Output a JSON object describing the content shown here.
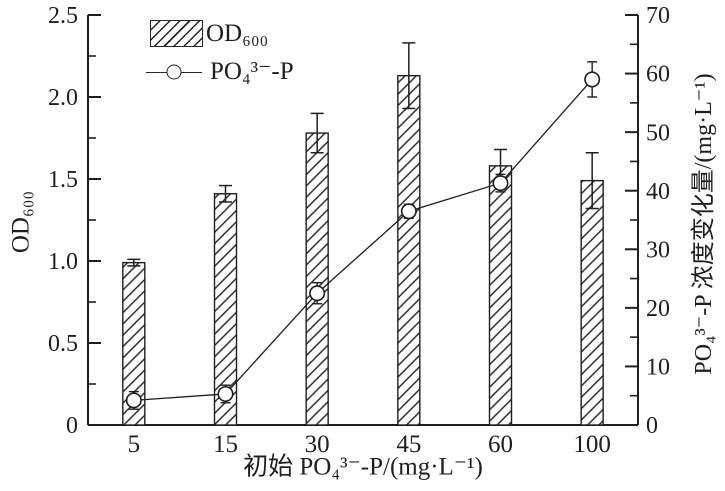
{
  "chart_data": {
    "type": "bar",
    "subtype": "dual-axis bar + line with error bars",
    "categories": [
      "5",
      "15",
      "30",
      "45",
      "60",
      "100"
    ],
    "series": [
      {
        "name": "OD₆₀₀",
        "kind": "bar",
        "axis": "left",
        "style": "diagonal-hatch",
        "values": [
          0.99,
          1.41,
          1.78,
          2.13,
          1.58,
          1.49
        ],
        "errors": [
          0.02,
          0.05,
          0.12,
          0.2,
          0.1,
          0.17
        ]
      },
      {
        "name": "PO₄³⁻-P",
        "kind": "line",
        "axis": "right",
        "marker": "open-circle",
        "values": [
          4.2,
          5.3,
          22.5,
          36.5,
          41.3,
          59.0
        ],
        "errors": [
          1.5,
          1.5,
          1.8,
          1.2,
          1.5,
          3.0
        ]
      }
    ],
    "xlabel": "初始 PO₄³⁻-P/(mg·L⁻¹)",
    "left_axis": {
      "label": "OD₆₀₀",
      "min": 0,
      "max": 2.5,
      "major_tick_step": 0.5,
      "minor_tick_step": 0.25,
      "tick_labels": [
        "0",
        "0.5",
        "1.0",
        "1.5",
        "2.0",
        "2.5"
      ]
    },
    "right_axis": {
      "label": "PO₄³⁻-P 浓度变化量/(mg·L⁻¹)",
      "min": 0,
      "max": 70,
      "major_tick_step": 10,
      "minor_tick_step": 5,
      "tick_labels": [
        "0",
        "10",
        "20",
        "30",
        "40",
        "50",
        "60",
        "70"
      ]
    },
    "legend": {
      "position": "top-left-inside",
      "entries": [
        "OD₆₀₀",
        "PO₄³⁻-P"
      ]
    },
    "grid": false,
    "frame": "open-top",
    "ink_color": "#1f1f1f",
    "background": "#ffffff"
  }
}
